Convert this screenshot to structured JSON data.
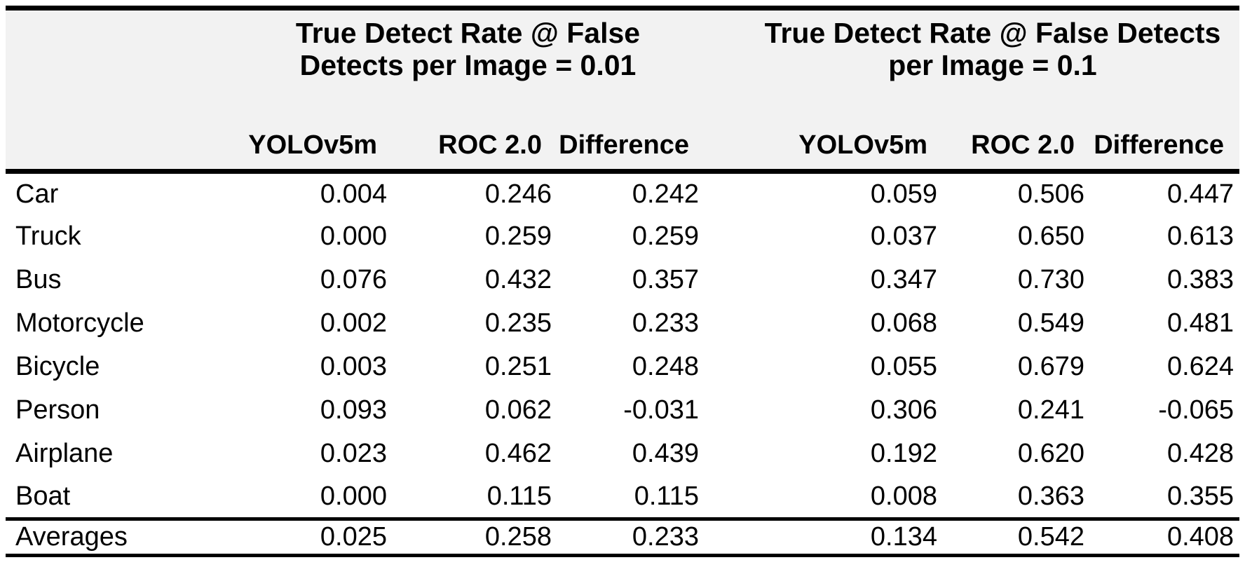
{
  "colors": {
    "header_bg": "#f2f2f2",
    "rule": "#000000",
    "text": "#000000",
    "page_bg": "#ffffff"
  },
  "header": {
    "corner_label": "",
    "group1": {
      "line1": "True Detect Rate @ False",
      "line2": "Detects per Image = 0.01"
    },
    "group2": {
      "line1": "True Detect Rate @ False Detects",
      "line2": "per Image = 0.1"
    },
    "subheaders": [
      "YOLOv5m",
      "ROC 2.0",
      "Difference",
      "YOLOv5m",
      "ROC 2.0",
      "Difference"
    ]
  },
  "rows": [
    {
      "label": "Car",
      "values": [
        "0.004",
        "0.246",
        "0.242",
        "0.059",
        "0.506",
        "0.447"
      ]
    },
    {
      "label": "Truck",
      "values": [
        "0.000",
        "0.259",
        "0.259",
        "0.037",
        "0.650",
        "0.613"
      ]
    },
    {
      "label": "Bus",
      "values": [
        "0.076",
        "0.432",
        "0.357",
        "0.347",
        "0.730",
        "0.383"
      ]
    },
    {
      "label": "Motorcycle",
      "values": [
        "0.002",
        "0.235",
        "0.233",
        "0.068",
        "0.549",
        "0.481"
      ]
    },
    {
      "label": "Bicycle",
      "values": [
        "0.003",
        "0.251",
        "0.248",
        "0.055",
        "0.679",
        "0.624"
      ]
    },
    {
      "label": "Person",
      "values": [
        "0.093",
        "0.062",
        "-0.031",
        "0.306",
        "0.241",
        "-0.065"
      ]
    },
    {
      "label": "Airplane",
      "values": [
        "0.023",
        "0.462",
        "0.439",
        "0.192",
        "0.620",
        "0.428"
      ]
    },
    {
      "label": "Boat",
      "values": [
        "0.000",
        "0.115",
        "0.115",
        "0.008",
        "0.363",
        "0.355"
      ]
    }
  ],
  "footer": {
    "label": "Averages",
    "values": [
      "0.025",
      "0.258",
      "0.233",
      "0.134",
      "0.542",
      "0.408"
    ]
  },
  "chart_data": {
    "type": "table",
    "title": "",
    "column_groups": [
      "True Detect Rate @ False Detects per Image = 0.01",
      "True Detect Rate @ False Detects per Image = 0.1"
    ],
    "columns": [
      "YOLOv5m (FDPI=0.01)",
      "ROC 2.0 (FDPI=0.01)",
      "Difference (FDPI=0.01)",
      "YOLOv5m (FDPI=0.1)",
      "ROC 2.0 (FDPI=0.1)",
      "Difference (FDPI=0.1)"
    ],
    "categories": [
      "Car",
      "Truck",
      "Bus",
      "Motorcycle",
      "Bicycle",
      "Person",
      "Airplane",
      "Boat",
      "Averages"
    ],
    "series": [
      {
        "name": "YOLOv5m (FDPI=0.01)",
        "values": [
          0.004,
          0.0,
          0.076,
          0.002,
          0.003,
          0.093,
          0.023,
          0.0,
          0.025
        ]
      },
      {
        "name": "ROC 2.0 (FDPI=0.01)",
        "values": [
          0.246,
          0.259,
          0.432,
          0.235,
          0.251,
          0.062,
          0.462,
          0.115,
          0.258
        ]
      },
      {
        "name": "Difference (FDPI=0.01)",
        "values": [
          0.242,
          0.259,
          0.357,
          0.233,
          0.248,
          -0.031,
          0.439,
          0.115,
          0.233
        ]
      },
      {
        "name": "YOLOv5m (FDPI=0.1)",
        "values": [
          0.059,
          0.037,
          0.347,
          0.068,
          0.055,
          0.306,
          0.192,
          0.008,
          0.134
        ]
      },
      {
        "name": "ROC 2.0 (FDPI=0.1)",
        "values": [
          0.506,
          0.65,
          0.73,
          0.549,
          0.679,
          0.241,
          0.62,
          0.363,
          0.542
        ]
      },
      {
        "name": "Difference (FDPI=0.1)",
        "values": [
          0.447,
          0.613,
          0.383,
          0.481,
          0.624,
          -0.065,
          0.428,
          0.355,
          0.408
        ]
      }
    ]
  }
}
